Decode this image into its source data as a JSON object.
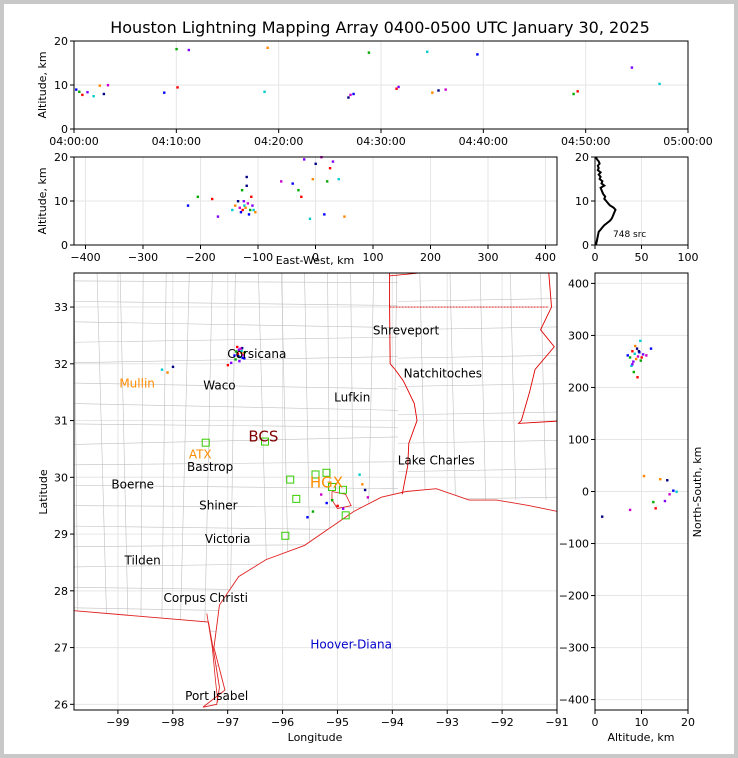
{
  "title": "Houston Lightning Mapping Array 0400-0500 UTC January 30, 2025",
  "colors": {
    "border": "#c8c8c8",
    "grid": "#e6e6e6",
    "county": "#c0c0c0",
    "coast": "#e02020",
    "state": "#e00000",
    "city": "#000000",
    "radar": "#ff8c00",
    "radar2": "#7f0000",
    "sensor": "#33cc00",
    "oilrig": "#0000cc",
    "profile": "#000000"
  },
  "chart_data": [
    {
      "id": "time_height",
      "type": "scatter",
      "ylabel": "Altitude, km",
      "ylim": [
        0,
        20
      ],
      "yticks": [
        "0",
        "10",
        "20"
      ],
      "xticks": [
        "04:00:00",
        "04:10:00",
        "04:20:00",
        "04:30:00",
        "04:40:00",
        "04:50:00",
        "05:00:00"
      ],
      "x_minutes": [
        0.2,
        0.5,
        0.8,
        1.3,
        1.9,
        2.5,
        2.9,
        3.3,
        8.8,
        10.0,
        10.1,
        11.2,
        18.6,
        18.9,
        26.8,
        27.0,
        27.3,
        28.8,
        31.5,
        31.7,
        34.5,
        35.0,
        35.6,
        36.3,
        39.4,
        48.8,
        49.2,
        54.5,
        57.2
      ],
      "y_km": [
        9.0,
        8.5,
        7.8,
        8.4,
        7.5,
        9.9,
        8.0,
        10.0,
        8.3,
        18.2,
        9.5,
        18.0,
        8.5,
        18.5,
        7.2,
        7.8,
        8.0,
        17.4,
        9.2,
        9.6,
        17.6,
        8.3,
        8.8,
        9.0,
        17.0,
        8.0,
        8.6,
        14.0,
        10.3
      ]
    },
    {
      "id": "ew_altitude",
      "type": "scatter",
      "xlabel": "East-West, km",
      "ylabel": "Altitude, km",
      "xlim": [
        -420,
        420
      ],
      "ylim": [
        0,
        20
      ],
      "xticks": [
        "−400",
        "−300",
        "−200",
        "−100",
        "0",
        "100",
        "200",
        "300",
        "400"
      ],
      "yticks": [
        "0",
        "10",
        "20"
      ],
      "x_km": [
        -222,
        -205,
        -180,
        -170,
        -145,
        -140,
        -135,
        -132,
        -130,
        -128,
        -127,
        -125,
        -124,
        -122,
        -120,
        -118,
        -116,
        -114,
        -112,
        -110,
        -108,
        -105,
        -120,
        -60,
        -40,
        -30,
        -25,
        -20,
        -10,
        -5,
        0,
        10,
        15,
        20,
        25,
        30,
        40,
        50
      ],
      "y_km": [
        9.0,
        11.0,
        10.5,
        6.5,
        8.0,
        9.0,
        10.0,
        8.5,
        7.5,
        12.5,
        8.0,
        10.0,
        9.0,
        8.5,
        13.5,
        9.5,
        7.0,
        8.0,
        11.0,
        9.0,
        8.0,
        7.5,
        15.5,
        14.5,
        14.0,
        12.5,
        11.0,
        19.5,
        6.0,
        15.0,
        18.5,
        20.0,
        7.0,
        14.5,
        17.5,
        19.0,
        15.0,
        6.5
      ]
    },
    {
      "id": "histogram",
      "type": "line",
      "annotation": "748 src",
      "xlim": [
        0,
        100
      ],
      "ylim": [
        0,
        20
      ],
      "xticks": [
        "0",
        "50",
        "100"
      ],
      "yticks": [
        "0",
        "10",
        "20"
      ],
      "alt_km": [
        0,
        1,
        2,
        3,
        3.5,
        4,
        4.5,
        5,
        5.5,
        6,
        6.5,
        7,
        7.5,
        8,
        8.5,
        9,
        9.5,
        10,
        10.5,
        11,
        11.5,
        12,
        12.5,
        13,
        13.5,
        14,
        14.5,
        15,
        15.5,
        16,
        16.5,
        17,
        17.5,
        18,
        18.5,
        19,
        19.5,
        20
      ],
      "counts": [
        1,
        2,
        3,
        4,
        6,
        8,
        10,
        13,
        16,
        18,
        19,
        20,
        21,
        22,
        20,
        16,
        14,
        12,
        10,
        11,
        9,
        8,
        7,
        6,
        10,
        7,
        8,
        5,
        6,
        4,
        6,
        3,
        4,
        3,
        5,
        4,
        2,
        1
      ]
    },
    {
      "id": "plan_view",
      "type": "scatter",
      "xlabel": "Longitude",
      "ylabel": "Latitude",
      "xlim": [
        -99.8,
        -91
      ],
      "ylim": [
        25.9,
        33.6
      ],
      "xticks": [
        "−99",
        "−98",
        "−97",
        "−96",
        "−95",
        "−94",
        "−93",
        "−92",
        "−91"
      ],
      "yticks": [
        "26",
        "27",
        "28",
        "29",
        "30",
        "31",
        "32",
        "33"
      ],
      "lon": [
        -96.88,
        -96.85,
        -96.82,
        -96.8,
        -96.78,
        -96.76,
        -96.74,
        -96.72,
        -96.7,
        -96.86,
        -96.83,
        -96.79,
        -96.75,
        -96.71,
        -96.81,
        -96.77,
        -96.73,
        -96.69,
        -97.0,
        -96.94,
        -98.2,
        -98.1,
        -98.0,
        -95.3,
        -95.2,
        -95.1,
        -95.0,
        -94.9,
        -94.6,
        -94.55,
        -94.5,
        -94.45,
        -95.55,
        -95.45
      ],
      "lat": [
        32.15,
        32.22,
        32.18,
        32.25,
        32.12,
        32.2,
        32.28,
        32.16,
        32.1,
        32.08,
        32.3,
        32.05,
        32.23,
        32.19,
        32.14,
        32.27,
        32.11,
        32.21,
        31.98,
        32.02,
        31.9,
        31.85,
        31.95,
        29.7,
        29.55,
        29.6,
        29.5,
        29.45,
        30.05,
        29.88,
        29.78,
        29.65,
        29.3,
        29.4
      ],
      "cities": [
        {
          "name": "Shreveport",
          "lon": -93.75,
          "lat": 32.52
        },
        {
          "name": "Corsicana",
          "lon": -96.47,
          "lat": 32.1
        },
        {
          "name": "Waco",
          "lon": -97.15,
          "lat": 31.55
        },
        {
          "name": "Natchitoches",
          "lon": -93.08,
          "lat": 31.76
        },
        {
          "name": "Lufkin",
          "lon": -94.73,
          "lat": 31.34
        },
        {
          "name": "Bastrop",
          "lon": -97.32,
          "lat": 30.11
        },
        {
          "name": "Lake Charles",
          "lon": -93.2,
          "lat": 30.23
        },
        {
          "name": "Boerne",
          "lon": -98.73,
          "lat": 29.8
        },
        {
          "name": "Shiner",
          "lon": -97.17,
          "lat": 29.43
        },
        {
          "name": "Victoria",
          "lon": -97.0,
          "lat": 28.84
        },
        {
          "name": "Tilden",
          "lon": -98.55,
          "lat": 28.46
        },
        {
          "name": "Corpus Christi",
          "lon": -97.4,
          "lat": 27.8
        },
        {
          "name": "Port Isabel",
          "lon": -97.2,
          "lat": 26.08
        }
      ],
      "radars": [
        {
          "name": "Mullin",
          "lon": -98.65,
          "lat": 31.58
        },
        {
          "name": "ATX",
          "lon": -97.5,
          "lat": 30.33
        },
        {
          "name": "HGX",
          "lon": -95.2,
          "lat": 29.82
        }
      ],
      "radar_marks": [
        {
          "name": "BCS",
          "lon": -96.35,
          "lat": 30.63
        }
      ],
      "offshore": [
        {
          "name": "Hoover-Diana",
          "lon": -94.75,
          "lat": 26.98
        }
      ],
      "sensors": [
        {
          "lon": -97.4,
          "lat": 30.61
        },
        {
          "lon": -96.32,
          "lat": 30.63
        },
        {
          "lon": -95.86,
          "lat": 29.96
        },
        {
          "lon": -95.75,
          "lat": 29.62
        },
        {
          "lon": -95.4,
          "lat": 30.05
        },
        {
          "lon": -95.2,
          "lat": 30.08
        },
        {
          "lon": -95.1,
          "lat": 29.83
        },
        {
          "lon": -94.9,
          "lat": 29.78
        },
        {
          "lon": -94.85,
          "lat": 29.33
        },
        {
          "lon": -95.95,
          "lat": 28.97
        }
      ]
    },
    {
      "id": "ns_altitude",
      "type": "scatter",
      "xlabel": "Altitude, km",
      "ylabel": "North-South, km",
      "xlim": [
        0,
        20
      ],
      "ylim": [
        -420,
        420
      ],
      "xticks": [
        "0",
        "10",
        "20"
      ],
      "yticks": [
        "−400",
        "−300",
        "−200",
        "−100",
        "0",
        "100",
        "200",
        "300",
        "400"
      ],
      "alt_km": [
        7.0,
        7.5,
        8.0,
        8.2,
        8.5,
        8.8,
        9.0,
        9.2,
        9.5,
        9.8,
        10.0,
        10.3,
        7.8,
        8.6,
        9.4,
        11.0,
        12.0,
        8.3,
        9.1,
        8.0,
        9.7,
        14.0,
        15.5,
        16.0,
        16.8,
        12.5,
        13.0,
        15.0,
        17.5,
        10.5,
        1.5,
        7.5
      ],
      "ns_km": [
        262,
        258,
        270,
        250,
        265,
        255,
        275,
        260,
        268,
        252,
        258,
        264,
        242,
        280,
        270,
        262,
        275,
        230,
        220,
        245,
        290,
        24,
        22,
        -5,
        2,
        -20,
        -32,
        -18,
        0,
        30,
        -48,
        -35
      ]
    }
  ]
}
